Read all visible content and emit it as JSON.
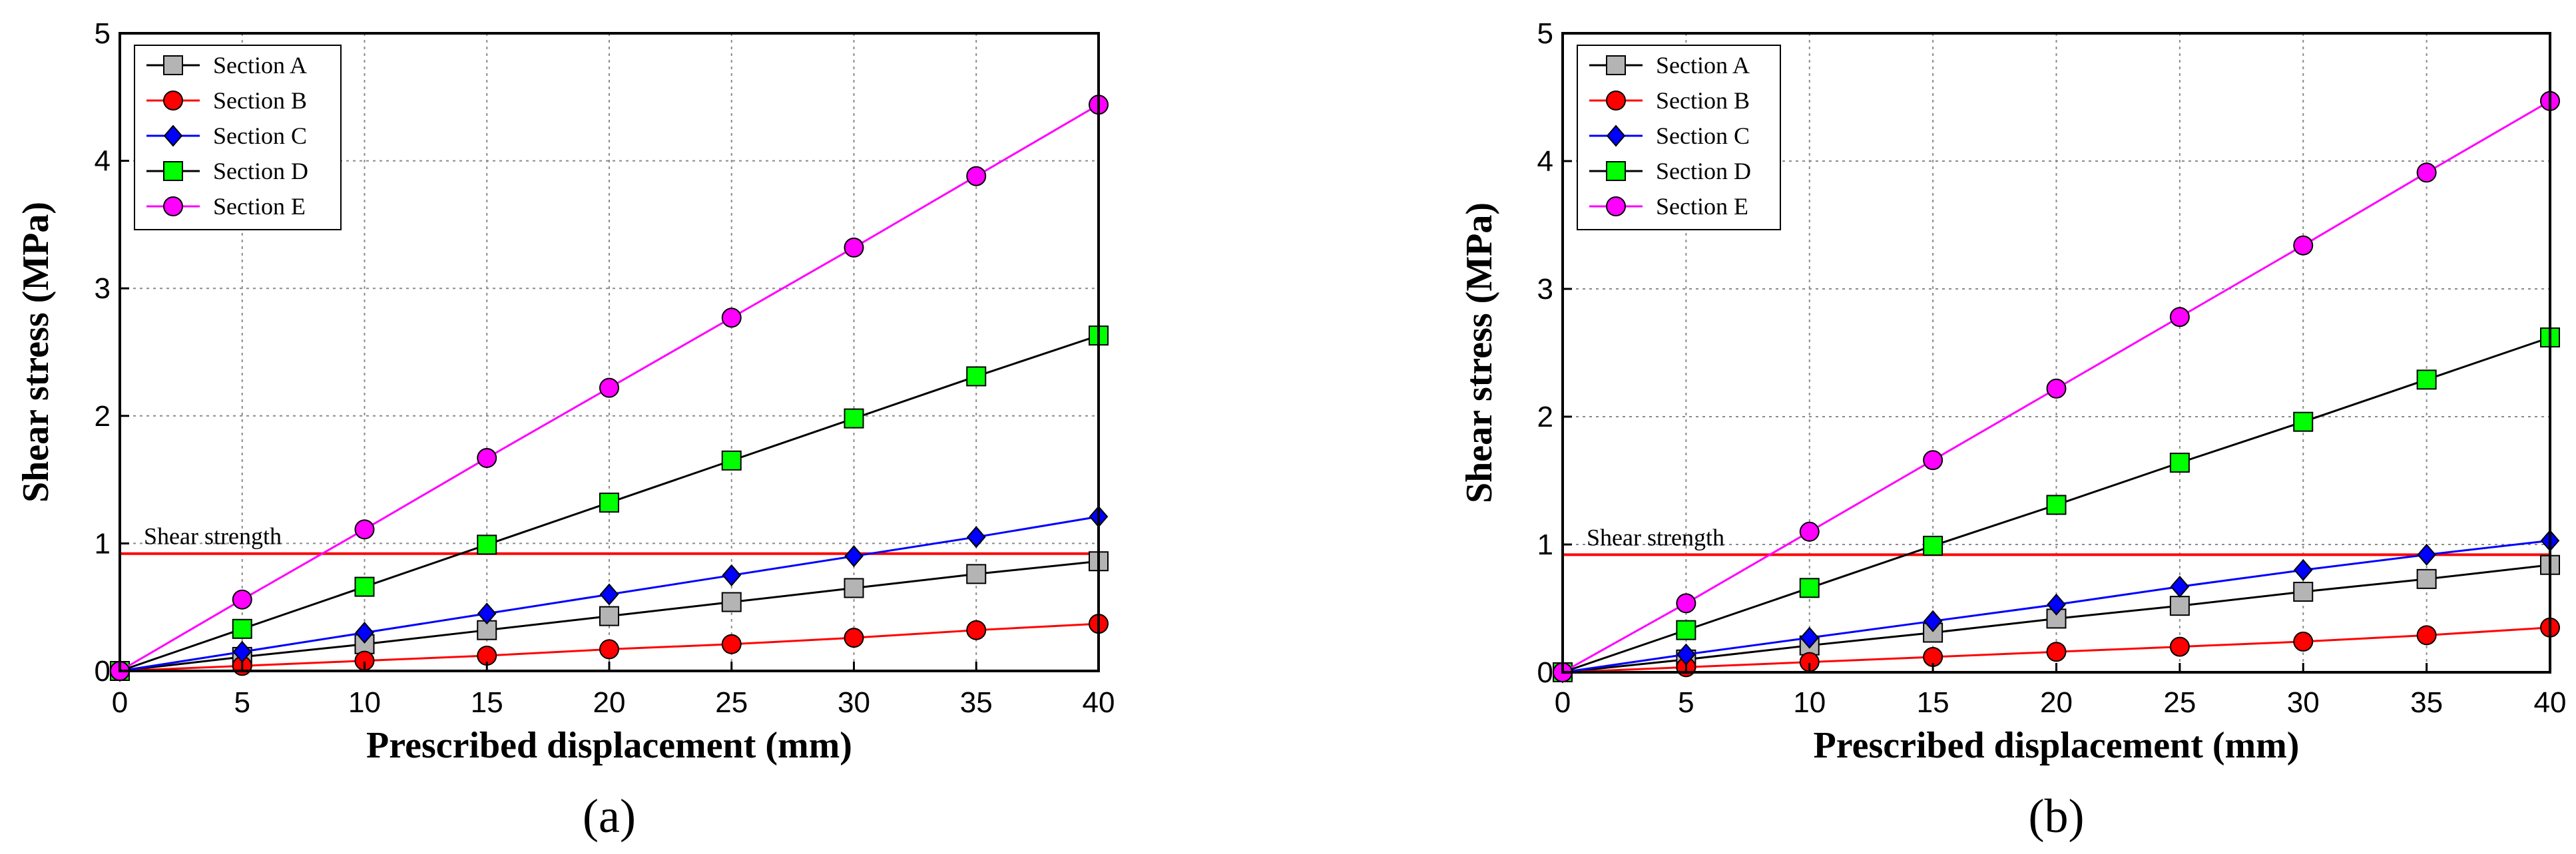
{
  "chart_data": [
    {
      "type": "line",
      "panel_label": "(a)",
      "xlabel": "Prescribed displacement (mm)",
      "ylabel": "Shear stress (MPa)",
      "xlim": [
        0,
        40
      ],
      "ylim": [
        0,
        5
      ],
      "xticks": [
        0,
        5,
        10,
        15,
        20,
        25,
        30,
        35,
        40
      ],
      "yticks": [
        0,
        1,
        2,
        3,
        4,
        5
      ],
      "grid": true,
      "legend_position": "top-left",
      "x": [
        0,
        5,
        10,
        15,
        20,
        25,
        30,
        35,
        40
      ],
      "series": [
        {
          "name": "Section A",
          "color": "#000000",
          "marker": "square",
          "fill": "#b4b4b4",
          "values": [
            0,
            0.11,
            0.21,
            0.32,
            0.43,
            0.54,
            0.65,
            0.76,
            0.86
          ]
        },
        {
          "name": "Section B",
          "color": "#ff0000",
          "marker": "circle",
          "fill": "#ff0000",
          "values": [
            0,
            0.04,
            0.08,
            0.12,
            0.17,
            0.21,
            0.26,
            0.32,
            0.37
          ]
        },
        {
          "name": "Section C",
          "color": "#0000ff",
          "marker": "diamond",
          "fill": "#0000ff",
          "values": [
            0,
            0.15,
            0.3,
            0.45,
            0.6,
            0.75,
            0.9,
            1.05,
            1.21
          ]
        },
        {
          "name": "Section D",
          "color": "#000000",
          "marker": "square",
          "fill": "#00ff00",
          "values": [
            0,
            0.33,
            0.66,
            0.99,
            1.32,
            1.65,
            1.98,
            2.31,
            2.63
          ]
        },
        {
          "name": "Section E",
          "color": "#ff00ff",
          "marker": "circle",
          "fill": "#ff00ff",
          "values": [
            0,
            0.56,
            1.11,
            1.67,
            2.22,
            2.77,
            3.32,
            3.88,
            4.44
          ]
        }
      ],
      "hline": {
        "y": 0.92,
        "label": "Shear strength",
        "color": "#ff0000"
      }
    },
    {
      "type": "line",
      "panel_label": "(b)",
      "xlabel": "Prescribed displacement (mm)",
      "ylabel": "Shear stress (MPa)",
      "xlim": [
        0,
        40
      ],
      "ylim": [
        0,
        5
      ],
      "xticks": [
        0,
        5,
        10,
        15,
        20,
        25,
        30,
        35,
        40
      ],
      "yticks": [
        0,
        1,
        2,
        3,
        4,
        5
      ],
      "grid": true,
      "legend_position": "top-left",
      "x": [
        0,
        5,
        10,
        15,
        20,
        25,
        30,
        35,
        40
      ],
      "series": [
        {
          "name": "Section A",
          "color": "#000000",
          "marker": "square",
          "fill": "#b4b4b4",
          "values": [
            0,
            0.1,
            0.21,
            0.31,
            0.42,
            0.52,
            0.63,
            0.73,
            0.84
          ]
        },
        {
          "name": "Section B",
          "color": "#ff0000",
          "marker": "circle",
          "fill": "#ff0000",
          "values": [
            0,
            0.04,
            0.08,
            0.12,
            0.16,
            0.2,
            0.24,
            0.29,
            0.35
          ]
        },
        {
          "name": "Section C",
          "color": "#0000ff",
          "marker": "diamond",
          "fill": "#0000ff",
          "values": [
            0,
            0.14,
            0.27,
            0.4,
            0.53,
            0.67,
            0.8,
            0.92,
            1.03
          ]
        },
        {
          "name": "Section D",
          "color": "#000000",
          "marker": "square",
          "fill": "#00ff00",
          "values": [
            0,
            0.33,
            0.66,
            0.99,
            1.31,
            1.64,
            1.96,
            2.29,
            2.62
          ]
        },
        {
          "name": "Section E",
          "color": "#ff00ff",
          "marker": "circle",
          "fill": "#ff00ff",
          "values": [
            0,
            0.54,
            1.1,
            1.66,
            2.22,
            2.78,
            3.34,
            3.91,
            4.47
          ]
        }
      ],
      "hline": {
        "y": 0.92,
        "label": "Shear strength",
        "color": "#ff0000"
      }
    }
  ]
}
